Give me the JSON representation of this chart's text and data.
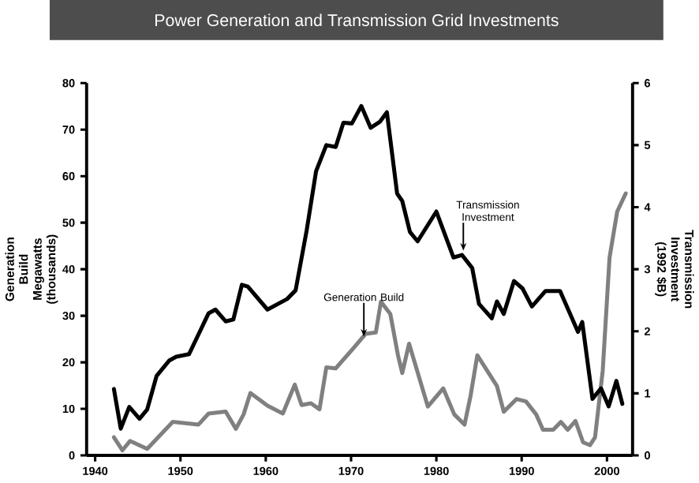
{
  "chart_data": {
    "type": "line",
    "title": "Power Generation and Transmission Grid Investments",
    "ylabel": "Generation Build Megawatts (thousands)",
    "y2label": "Transmission Investment (1992 $B)",
    "xlim": [
      1939,
      2003
    ],
    "xticks": [
      1940,
      1950,
      1960,
      1970,
      1980,
      1990,
      2000
    ],
    "ylim": [
      0,
      80
    ],
    "yticks": [
      0,
      10,
      20,
      30,
      40,
      50,
      60,
      70,
      80
    ],
    "y2lim": [
      0,
      6
    ],
    "y2ticks": [
      0,
      1,
      2,
      3,
      4,
      5,
      6
    ],
    "grid": false,
    "legend": false,
    "marker": "none",
    "line_style": "solid",
    "series": [
      {
        "color": "#808080",
        "axis": "y",
        "x": [
          1942.2,
          1943.2,
          1944.1,
          1946.1,
          1949.1,
          1952.1,
          1953.3,
          1955.3,
          1956.5,
          1957.4,
          1958.2,
          1960.2,
          1962,
          1963.4,
          1964.2,
          1965.3,
          1966.3,
          1967.1,
          1968.2,
          1970.3,
          1971.7,
          1972.9,
          1973.5,
          1974.6,
          1975.5,
          1976,
          1976.8,
          1979,
          1980.8,
          1982.1,
          1983.3,
          1984,
          1984.8,
          1987.1,
          1987.9,
          1989.4,
          1990.5,
          1991.7,
          1992.5,
          1993.7,
          1994.6,
          1995.4,
          1996.3,
          1997.2,
          1998,
          1998.6,
          1999.5,
          2000.3,
          2001.2,
          2002.2
        ],
        "values": [
          3.9,
          1.1,
          3.1,
          1.4,
          7.2,
          6.6,
          9,
          9.4,
          5.7,
          8.8,
          13.4,
          10.7,
          9,
          15.2,
          10.8,
          11.2,
          9.9,
          18.9,
          18.7,
          23.1,
          26.1,
          26.4,
          33,
          30.4,
          21.5,
          17.7,
          24,
          10.5,
          14.4,
          8.8,
          6.6,
          12.7,
          21.5,
          14.9,
          9.4,
          12.1,
          11.6,
          8.8,
          5.5,
          5.5,
          7.2,
          5.5,
          7.4,
          2.8,
          2.2,
          3.9,
          18.2,
          42.5,
          52.4,
          56.3
        ]
      },
      {
        "color": "#000000",
        "axis": "y2",
        "x": [
          1942.2,
          1943,
          1944,
          1945.2,
          1946.1,
          1947.2,
          1948.7,
          1949.5,
          1951,
          1953.3,
          1954.1,
          1955.3,
          1956.2,
          1957.2,
          1957.9,
          1960.2,
          1962.5,
          1963.5,
          1964.8,
          1965.9,
          1967.1,
          1968.2,
          1969.1,
          1970.1,
          1971.2,
          1972.3,
          1973.4,
          1974.2,
          1975.4,
          1976,
          1976.9,
          1977.8,
          1980,
          1982,
          1983,
          1984.2,
          1985,
          1986.5,
          1987.1,
          1987.9,
          1989.1,
          1990.1,
          1991.2,
          1992.8,
          1994.5,
          1996.6,
          1997.1,
          1998.3,
          1999.3,
          2000.2,
          2001.1,
          2001.8
        ],
        "values": [
          1.07,
          0.43,
          0.78,
          0.59,
          0.74,
          1.28,
          1.53,
          1.59,
          1.63,
          2.29,
          2.35,
          2.16,
          2.19,
          2.75,
          2.72,
          2.35,
          2.52,
          2.66,
          3.63,
          4.58,
          5,
          4.97,
          5.36,
          5.35,
          5.63,
          5.28,
          5.38,
          5.53,
          4.22,
          4.1,
          3.6,
          3.45,
          3.93,
          3.19,
          3.23,
          3.02,
          2.44,
          2.21,
          2.48,
          2.28,
          2.81,
          2.69,
          2.4,
          2.65,
          2.65,
          1.99,
          2.15,
          0.91,
          1.08,
          0.79,
          1.2,
          0.83
        ]
      }
    ],
    "annotations": [
      {
        "text": "Generation Build",
        "x": 1971.5,
        "y": 25.5
      },
      "Transmission Investment"
    ]
  }
}
